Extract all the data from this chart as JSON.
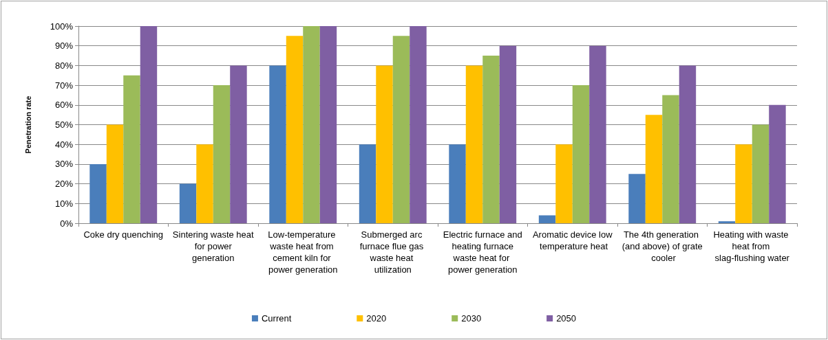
{
  "chart_data": {
    "type": "bar",
    "ylabel": "Penetration rate",
    "categories": [
      "Coke dry quenching",
      "Sintering waste heat for power generation",
      "Low-temperature waste heat from cement kiln for power generation",
      "Submerged arc furnace flue gas waste heat utilization",
      "Electric furnace and heating furnace waste heat for power generation",
      "Aromatic device low temperature heat",
      "The 4th generation (and above) of grate cooler",
      "Heating with waste heat from slag-flushing water"
    ],
    "series": [
      {
        "name": "Current",
        "color": "#4a7ebb",
        "values": [
          30,
          20,
          80,
          40,
          40,
          4,
          25,
          1
        ]
      },
      {
        "name": "2020",
        "color": "#ffc000",
        "values": [
          50,
          40,
          95,
          80,
          80,
          40,
          55,
          40
        ]
      },
      {
        "name": "2030",
        "color": "#9bbb59",
        "values": [
          75,
          70,
          100,
          95,
          85,
          70,
          65,
          50
        ]
      },
      {
        "name": "2050",
        "color": "#7f5fa3",
        "values": [
          100,
          80,
          100,
          100,
          90,
          90,
          80,
          60
        ]
      }
    ],
    "ylim": [
      0,
      100
    ],
    "yticks": [
      {
        "value": 0,
        "label": "0%"
      },
      {
        "value": 10,
        "label": "10%"
      },
      {
        "value": 20,
        "label": "20%"
      },
      {
        "value": 30,
        "label": "30%"
      },
      {
        "value": 40,
        "label": "40%"
      },
      {
        "value": 50,
        "label": "50%"
      },
      {
        "value": 60,
        "label": "60%"
      },
      {
        "value": 70,
        "label": "70%"
      },
      {
        "value": 80,
        "label": "80%"
      },
      {
        "value": 90,
        "label": "90%"
      },
      {
        "value": 100,
        "label": "100%"
      }
    ],
    "grid": "y",
    "legend": "bottom"
  }
}
